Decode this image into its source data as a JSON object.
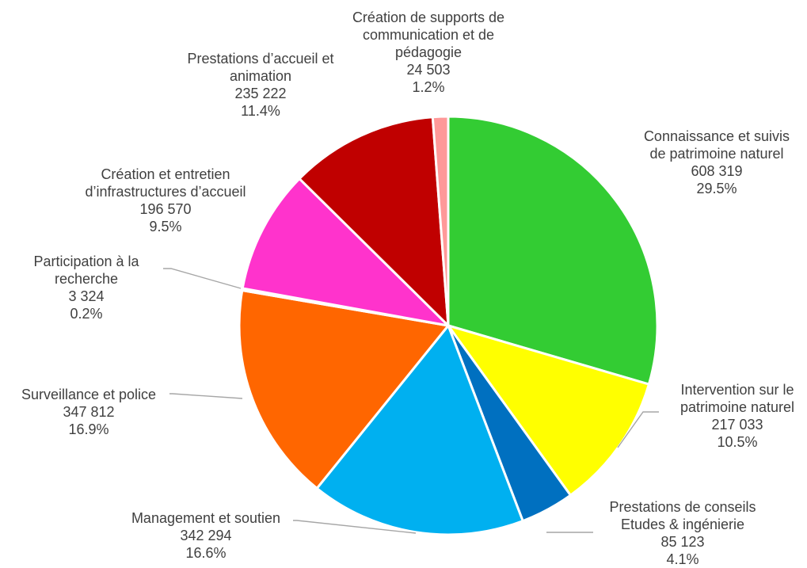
{
  "chart_data": {
    "type": "pie",
    "title": "",
    "start_angle_deg": 0,
    "direction": "clockwise",
    "slices": [
      {
        "label_lines": [
          "Connaissance et suivis",
          "de patrimoine naturel"
        ],
        "value": 608319,
        "value_label": "608 319",
        "percent": 29.5,
        "percent_label": "29.5%",
        "color": "#33cc33"
      },
      {
        "label_lines": [
          "Intervention sur le",
          "patrimoine naturel"
        ],
        "value": 217033,
        "value_label": "217 033",
        "percent": 10.5,
        "percent_label": "10.5%",
        "color": "#ffff00"
      },
      {
        "label_lines": [
          "Prestations de conseils",
          "Etudes & ingénierie"
        ],
        "value": 85123,
        "value_label": "85 123",
        "percent": 4.1,
        "percent_label": "4.1%",
        "color": "#0070c0"
      },
      {
        "label_lines": [
          "Management et soutien"
        ],
        "value": 342294,
        "value_label": "342 294",
        "percent": 16.6,
        "percent_label": "16.6%",
        "color": "#00b0f0"
      },
      {
        "label_lines": [
          "Surveillance et police"
        ],
        "value": 347812,
        "value_label": "347 812",
        "percent": 16.9,
        "percent_label": "16.9%",
        "color": "#ff6600"
      },
      {
        "label_lines": [
          "Participation à la",
          "recherche"
        ],
        "value": 3324,
        "value_label": "3 324",
        "percent": 0.2,
        "percent_label": "0.2%",
        "color": "#ffffff"
      },
      {
        "label_lines": [
          "Création et entretien",
          "d’infrastructures d’accueil"
        ],
        "value": 196570,
        "value_label": "196 570",
        "percent": 9.5,
        "percent_label": "9.5%",
        "color": "#ff33cc"
      },
      {
        "label_lines": [
          "Prestations d’accueil et",
          "animation"
        ],
        "value": 235222,
        "value_label": "235 222",
        "percent": 11.4,
        "percent_label": "11.4%",
        "color": "#c00000"
      },
      {
        "label_lines": [
          "Création de supports de",
          "communication et de",
          "pédagogie"
        ],
        "value": 24503,
        "value_label": "24 503",
        "percent": 1.2,
        "percent_label": "1.2%",
        "color": "#ff9999"
      }
    ],
    "legend": "none",
    "data_labels": "category, value, percent"
  }
}
